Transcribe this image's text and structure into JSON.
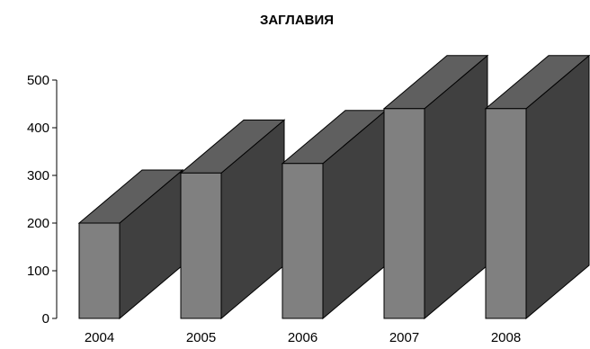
{
  "chart_data": {
    "type": "bar",
    "title": "ЗАГЛАВИЯ",
    "xlabel": "",
    "ylabel": "",
    "categories": [
      "2004",
      "2005",
      "2006",
      "2007",
      "2008"
    ],
    "values": [
      200,
      305,
      325,
      440,
      440
    ],
    "ylim": [
      0,
      500
    ],
    "yticks": [
      0,
      100,
      200,
      300,
      400,
      500
    ],
    "three_d": true,
    "grid": false,
    "legend": "none",
    "colors": {
      "front": "#808080",
      "side": "#404040",
      "top": "#5f5f5f"
    }
  }
}
